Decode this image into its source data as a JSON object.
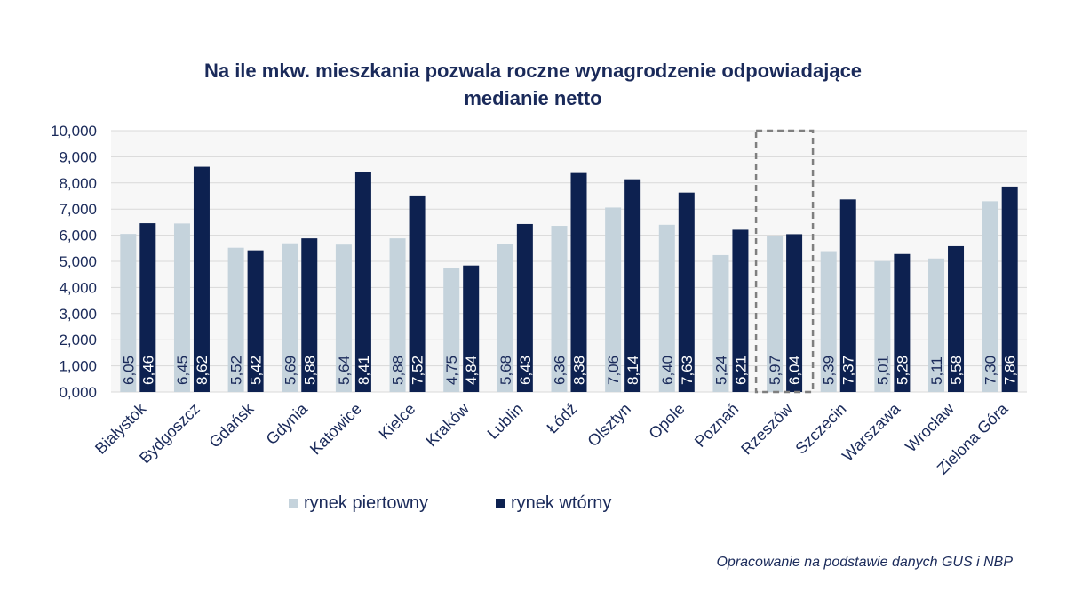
{
  "chart_data": {
    "type": "bar",
    "title_lines": [
      "Na ile mkw. mieszkania pozwala roczne wynagrodzenie odpowiadające",
      "medianie netto"
    ],
    "categories": [
      "Białystok",
      "Bydgoszcz",
      "Gdańsk",
      "Gdynia",
      "Katowice",
      "Kielce",
      "Kraków",
      "Lublin",
      "Łódź",
      "Olsztyn",
      "Opole",
      "Poznań",
      "Rzeszów",
      "Szczecin",
      "Warszawa",
      "Wrocław",
      "Zielona Góra"
    ],
    "series": [
      {
        "name": "rynek piertowny",
        "color": "#c5d3dc",
        "values": [
          6.05,
          6.45,
          5.52,
          5.69,
          5.64,
          5.88,
          4.75,
          5.68,
          6.36,
          7.06,
          6.4,
          5.24,
          5.97,
          5.39,
          5.01,
          5.11,
          7.3
        ],
        "labels": [
          "6,05",
          "6,45",
          "5,52",
          "5,69",
          "5,64",
          "5,88",
          "4,75",
          "5,68",
          "6,36",
          "7,06",
          "6,40",
          "5,24",
          "5,97",
          "5,39",
          "5,01",
          "5,11",
          "7,30"
        ]
      },
      {
        "name": "rynek wtórny",
        "color": "#0d2150",
        "values": [
          6.46,
          8.62,
          5.42,
          5.88,
          8.41,
          7.52,
          4.84,
          6.43,
          8.38,
          8.14,
          7.63,
          6.21,
          6.04,
          7.37,
          5.28,
          5.58,
          7.86
        ],
        "labels": [
          "6,46",
          "8,62",
          "5,42",
          "5,88",
          "8,41",
          "7,52",
          "4,84",
          "6,43",
          "8,38",
          "8,14",
          "7,63",
          "6,21",
          "6,04",
          "7,37",
          "5,28",
          "5,58",
          "7,86"
        ]
      }
    ],
    "yticks": [
      "0,000",
      "1,000",
      "2,000",
      "3,000",
      "4,000",
      "5,000",
      "6,000",
      "7,000",
      "8,000",
      "9,000",
      "10,000"
    ],
    "ylim": [
      0,
      10
    ],
    "grid": true,
    "legend_position": "bottom",
    "highlighted_category": "Rzeszów",
    "source_note": "Opracowanie na podstawie danych GUS i NBP"
  }
}
